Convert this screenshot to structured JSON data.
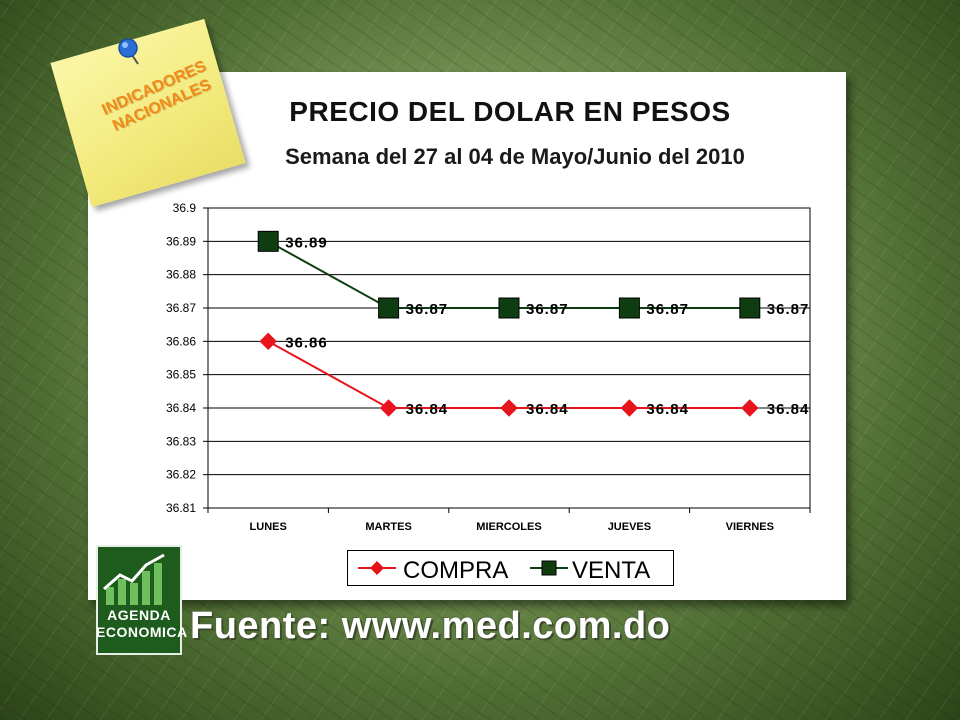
{
  "slide": {
    "title": "PRECIO DEL DOLAR EN PESOS",
    "subtitle": "Semana del 27 al 04 de Mayo/Junio del 2010",
    "note_line1": "INDICADORES",
    "note_line2": "NACIONALES",
    "logo_line1": "AGENDA",
    "logo_line2": "ECONOMICA",
    "source": "Fuente: www.med.com.do"
  },
  "chart_data": {
    "type": "line",
    "title": "",
    "categories": [
      "LUNES",
      "MARTES",
      "MIERCOLES",
      "JUEVES",
      "VIERNES"
    ],
    "series": [
      {
        "name": "COMPRA",
        "values": [
          36.86,
          36.84,
          36.84,
          36.84,
          36.84
        ],
        "color": "#e8141c",
        "marker": "diamond"
      },
      {
        "name": "VENTA",
        "values": [
          36.89,
          36.87,
          36.87,
          36.87,
          36.87
        ],
        "color": "#0f3d12",
        "marker": "square"
      }
    ],
    "y_ticks": [
      "36.81",
      "36.82",
      "36.83",
      "36.84",
      "36.85",
      "36.86",
      "36.87",
      "36.88",
      "36.89",
      "36.9"
    ],
    "ylim": [
      36.81,
      36.9
    ],
    "grid": true,
    "legend_position": "bottom"
  }
}
